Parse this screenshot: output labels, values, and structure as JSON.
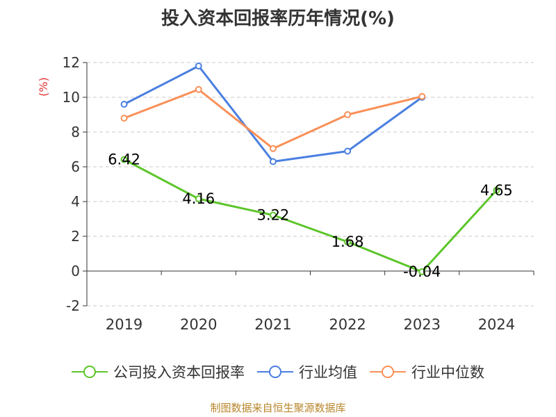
{
  "title": "投入资本回报率历年情况(%)",
  "source": "制图数据来自恒生聚源数据库",
  "chart_data": {
    "type": "line",
    "title": "投入资本回报率历年情况(%)",
    "ylabel": "(%)",
    "ylim": [
      -2,
      12
    ],
    "yticks": [
      -2,
      0,
      2,
      4,
      6,
      8,
      10,
      12
    ],
    "categories": [
      "2019",
      "2020",
      "2021",
      "2022",
      "2023",
      "2024"
    ],
    "grid": true,
    "legend_position": "bottom",
    "series": [
      {
        "name": "公司投入资本回报率",
        "color": "#5cc52a",
        "values": [
          6.42,
          4.16,
          3.22,
          1.68,
          -0.04,
          4.65
        ],
        "labels": [
          "6.42",
          "4.16",
          "3.22",
          "1.68",
          "-0.04",
          "4.65"
        ]
      },
      {
        "name": "行业均值",
        "color": "#4a7fe0",
        "values": [
          9.6,
          11.8,
          6.3,
          6.9,
          10.0,
          null
        ]
      },
      {
        "name": "行业中位数",
        "color": "#f99058",
        "values": [
          8.8,
          10.45,
          7.05,
          9.0,
          10.05,
          null
        ]
      }
    ]
  }
}
